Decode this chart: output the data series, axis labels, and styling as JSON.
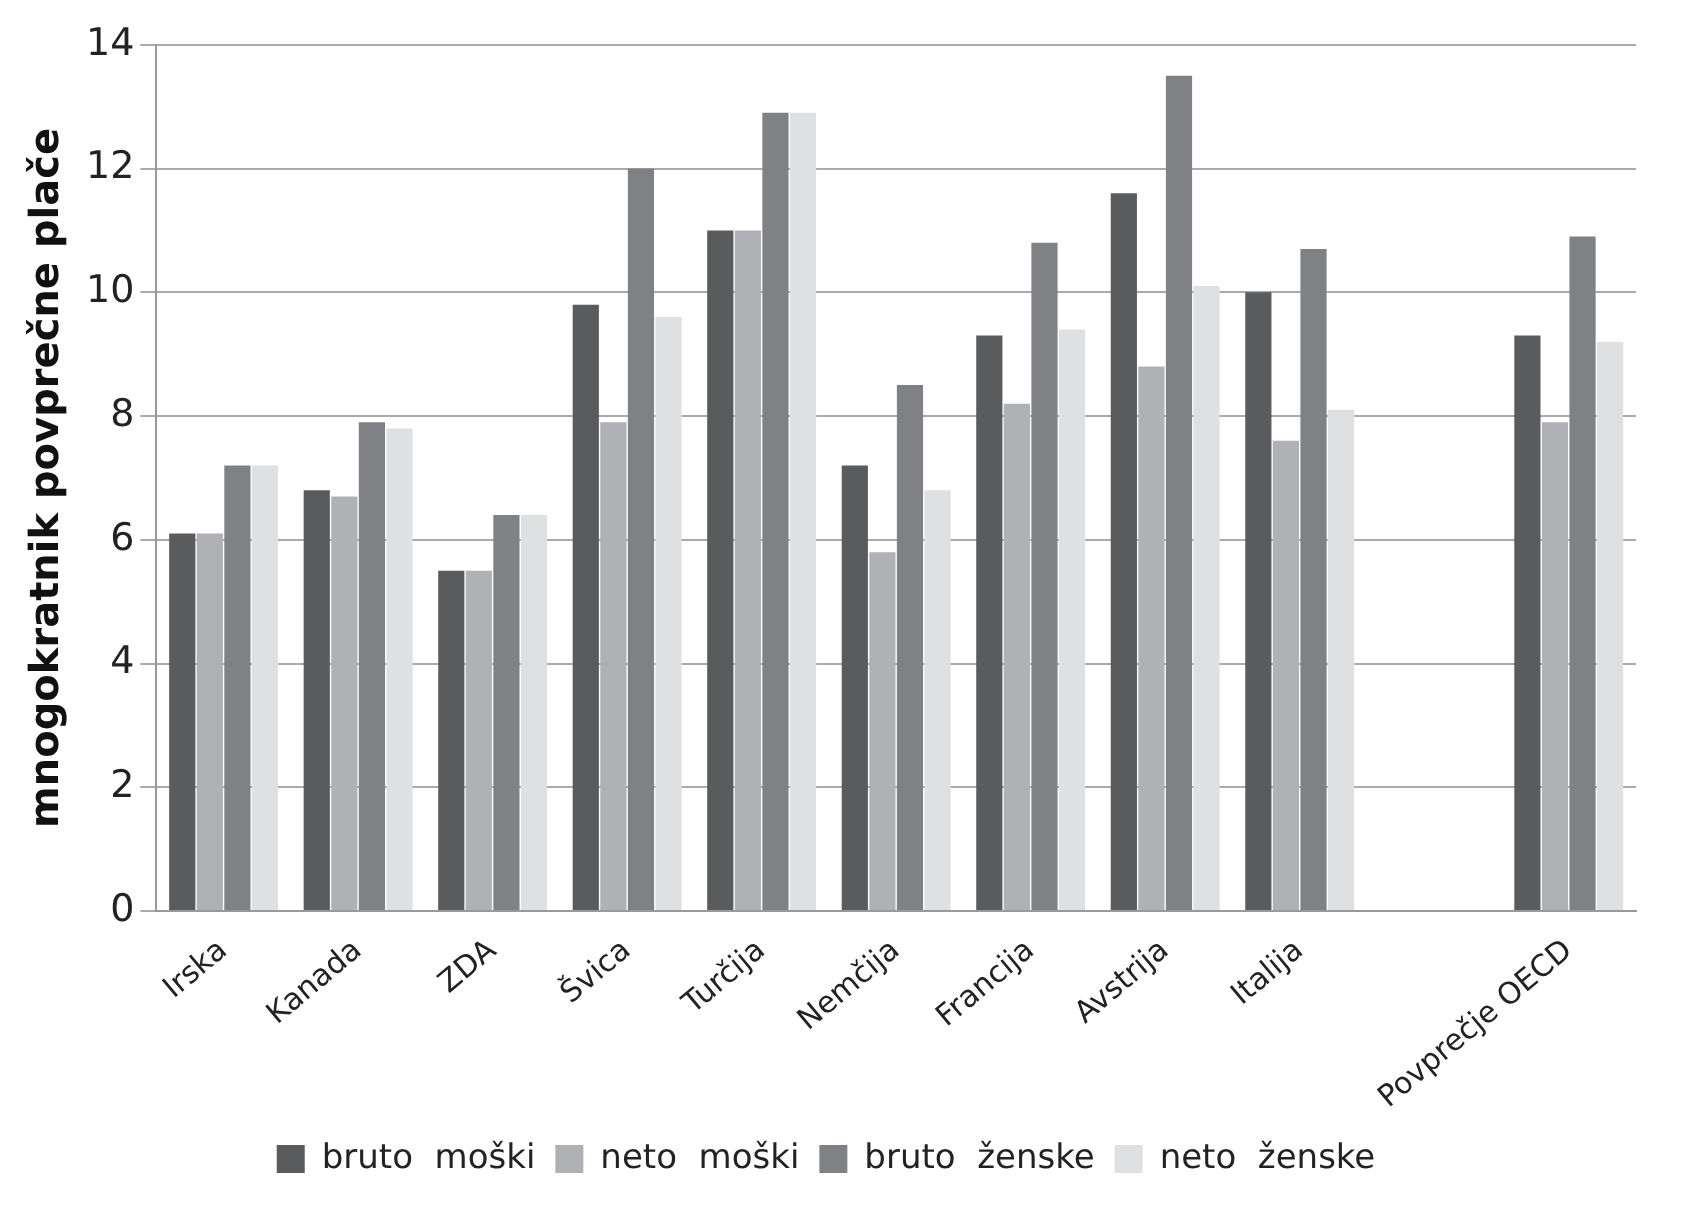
{
  "chart_data": {
    "type": "bar",
    "ylabel": "mnogokratnik povprečne plače",
    "categories": [
      "Irska",
      "Kanada",
      "ZDA",
      "Švica",
      "Turčija",
      "Nemčija",
      "Francija",
      "Avstrija",
      "Italija",
      null,
      "Povprečje OECD"
    ],
    "series": [
      {
        "name": "bruto  moški",
        "color": "#5a5b5d",
        "values": [
          6.1,
          6.8,
          5.5,
          9.8,
          11,
          7.2,
          9.3,
          11.6,
          10,
          null,
          9.3
        ]
      },
      {
        "name": "neto  moški",
        "color": "#b0b1b4",
        "values": [
          6.1,
          6.7,
          5.5,
          7.9,
          11,
          5.8,
          8.2,
          8.8,
          7.6,
          null,
          7.9
        ]
      },
      {
        "name": "bruto  ženske",
        "color": "#808184",
        "values": [
          7.2,
          7.9,
          6.4,
          12,
          12.9,
          8.5,
          10.8,
          13.5,
          10.7,
          null,
          10.9
        ]
      },
      {
        "name": "neto  ženske",
        "color": "#dfe0e2",
        "values": [
          7.2,
          7.8,
          6.4,
          9.6,
          12.9,
          6.8,
          9.4,
          10.1,
          8.1,
          null,
          9.2
        ]
      }
    ],
    "ylim": [
      0,
      14
    ],
    "yticks": [
      0,
      2,
      4,
      6,
      8,
      10,
      12,
      14
    ],
    "grid": "y",
    "legend": "bottom"
  }
}
